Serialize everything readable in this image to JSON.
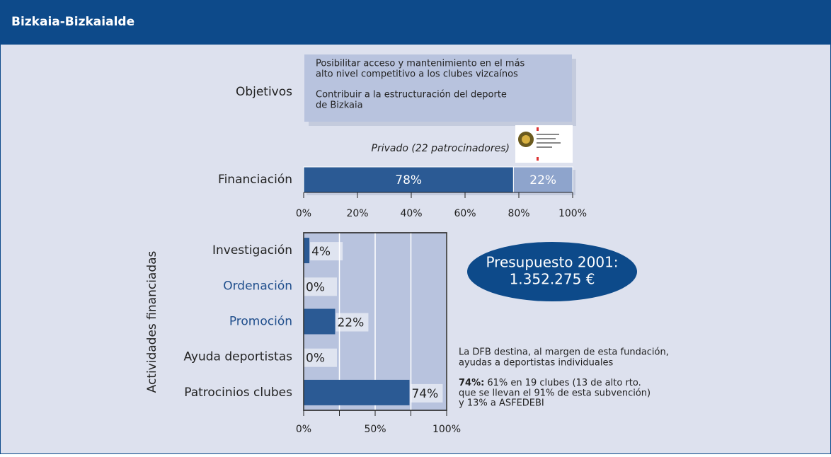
{
  "header": {
    "title": "Bizkaia-Bizkaialde"
  },
  "objectives": {
    "label": "Objetivos",
    "items": [
      [
        "Posibilitar acceso y mantenimiento en el más",
        "alto nivel competitivo a los clubes vizcaínos"
      ],
      [
        "Contribuir a la estructuración del deporte",
        "de Bizkaia"
      ]
    ]
  },
  "chart_data": [
    {
      "type": "stacked-bar-horizontal",
      "categories": [
        "Financiación"
      ],
      "annotation": "Privado (22 patrocinadores)",
      "series": [
        {
          "color": "#2b5a94",
          "values": [
            78
          ],
          "value_labels": [
            "78%"
          ]
        },
        {
          "color": "#8ea4cc",
          "values": [
            22
          ],
          "value_labels": [
            "22%"
          ]
        }
      ],
      "xlim": [
        0,
        100
      ],
      "xticks": [
        {
          "value": 0,
          "label": "0%"
        },
        {
          "value": 20,
          "label": "20%"
        },
        {
          "value": 40,
          "label": "40%"
        },
        {
          "value": 60,
          "label": "60%"
        },
        {
          "value": 80,
          "label": "80%"
        },
        {
          "value": 100,
          "label": "100%"
        }
      ]
    },
    {
      "type": "bar-horizontal",
      "ylabel": "Actividades financiadas",
      "categories": [
        "Investigación",
        "Ordenación",
        "Promoción",
        "Ayuda deportistas",
        "Patrocinios clubes"
      ],
      "category_colors": [
        "#222222",
        "#1f4e8c",
        "#1f4e8c",
        "#222222",
        "#222222"
      ],
      "values": [
        4,
        0,
        22,
        0,
        74
      ],
      "value_labels": [
        "4%",
        "0%",
        "22%",
        "0%",
        "74%"
      ],
      "color": "#2b5a94",
      "grid": true,
      "xlim": [
        0,
        100
      ],
      "xticks": [
        {
          "value": 0,
          "label": "0%"
        },
        {
          "value": 50,
          "label": "50%"
        },
        {
          "value": 100,
          "label": "100%"
        }
      ],
      "minor_xticks": [
        25,
        75
      ]
    }
  ],
  "budget": {
    "lines": [
      "Presupuesto 2001:",
      "1.352.275 €"
    ]
  },
  "notes": {
    "note1": [
      "La DFB destina, al margen de esta fundación,",
      "ayudas a deportistas individuales"
    ],
    "note2_bold": "74%:",
    "note2": [
      "61% en 19 clubes (13 de alto rto.",
      "que se llevan el 91% de esta subvención)",
      "y 13% a ASFEDEBI"
    ]
  }
}
